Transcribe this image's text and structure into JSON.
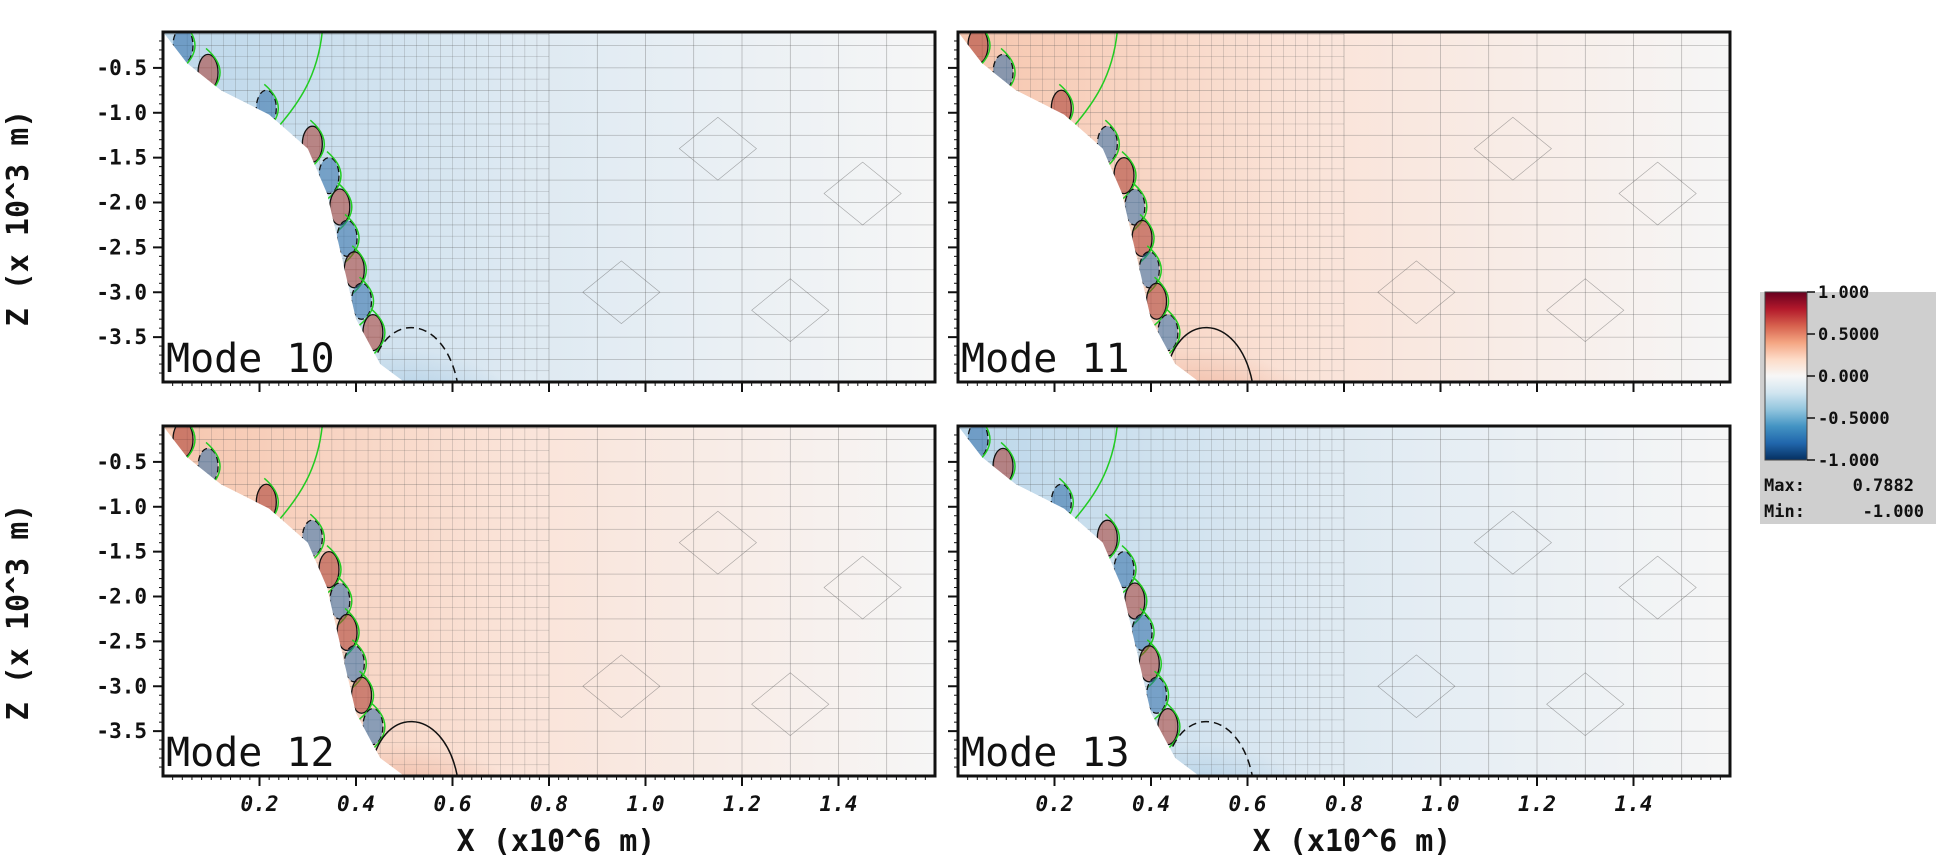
{
  "chart_data": {
    "type": "heatmap",
    "panels": [
      {
        "label": "Mode 10",
        "sign": -1
      },
      {
        "label": "Mode 11",
        "sign": 1
      },
      {
        "label": "Mode 12",
        "sign": 1
      },
      {
        "label": "Mode 13",
        "sign": -1
      }
    ],
    "xlabel": "X (x10^6 m)",
    "ylabel": "Z (x 10^3 m)",
    "xlim": [
      0.0,
      1.6
    ],
    "ylim": [
      -4.0,
      -0.1
    ],
    "x_ticks": [
      "0.2",
      "0.4",
      "0.6",
      "0.8",
      "1.0",
      "1.2",
      "1.4"
    ],
    "x_tick_values": [
      0.2,
      0.4,
      0.6,
      0.8,
      1.0,
      1.2,
      1.4
    ],
    "y_ticks": [
      "-0.5",
      "-1.0",
      "-1.5",
      "-2.0",
      "-2.5",
      "-3.0",
      "-3.5"
    ],
    "y_tick_values": [
      -0.5,
      -1.0,
      -1.5,
      -2.0,
      -2.5,
      -3.0,
      -3.5
    ],
    "colorbar": {
      "ticks": [
        "1.000",
        "0.5000",
        "0.000",
        "-0.5000",
        "-1.000"
      ],
      "tick_values": [
        1.0,
        0.5,
        0.0,
        -0.5,
        -1.0
      ],
      "max_label": "Max:",
      "max_value": "0.7882",
      "min_label": "Min:",
      "min_value": "-1.000",
      "colormap": [
        "#67001f",
        "#b2182b",
        "#d6604d",
        "#f4a582",
        "#fddbc7",
        "#f7f7f7",
        "#d1e5f0",
        "#92c5de",
        "#4393c3",
        "#2166ac",
        "#053061"
      ]
    },
    "contour_colors": {
      "zero": "#22cc22",
      "positive": "#000000",
      "negative": "#000000"
    },
    "grid": true
  }
}
